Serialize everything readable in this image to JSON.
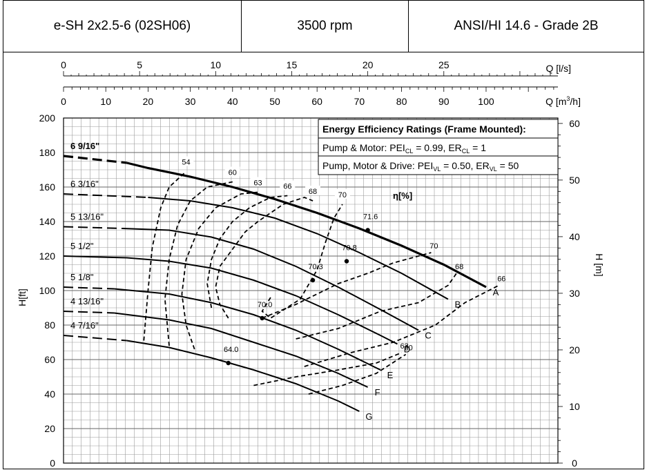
{
  "header": {
    "model": "e-SH 2x2.5-6 (02SH06)",
    "speed": "3500 rpm",
    "standard": "ANSI/HI 14.6 - Grade 2B"
  },
  "efficiency_box": {
    "title": "Energy Efficiency Ratings (Frame Mounted):",
    "pump_motor_prefix": "Pump & Motor: PEI",
    "pump_motor_pei_sub": "CL",
    "pump_motor_mid": " = 0.99, ER",
    "pump_motor_er_sub": "CL",
    "pump_motor_end": " = 1",
    "pump_drive_prefix": "Pump, Motor & Drive: PEI",
    "pump_drive_pei_sub": "VL",
    "pump_drive_mid": " = 0.50, ER",
    "pump_drive_er_sub": "VL",
    "pump_drive_end": " = 50"
  },
  "chart_data": {
    "type": "line",
    "axes": {
      "q_ls": {
        "label": "Q [l/s]",
        "range": [
          0,
          32.5
        ],
        "ticks": [
          "0",
          "5",
          "10",
          "15",
          "20",
          "25"
        ],
        "tick_values": [
          0,
          5,
          10,
          15,
          20,
          25
        ]
      },
      "q_m3h": {
        "label_prefix": "Q [m",
        "label_sup": "3",
        "label_suffix": "/h]",
        "range": [
          0,
          117
        ],
        "ticks": [
          "0",
          "10",
          "20",
          "30",
          "40",
          "50",
          "60",
          "70",
          "80",
          "90",
          "100"
        ],
        "tick_values": [
          0,
          10,
          20,
          30,
          40,
          50,
          60,
          70,
          80,
          90,
          100
        ]
      },
      "h_ft": {
        "label": "H[ft]",
        "range": [
          0,
          200
        ],
        "ticks": [
          "0",
          "20",
          "40",
          "60",
          "80",
          "100",
          "120",
          "140",
          "160",
          "180",
          "200"
        ],
        "tick_values": [
          0,
          20,
          40,
          60,
          80,
          100,
          120,
          140,
          160,
          180,
          200
        ]
      },
      "h_m": {
        "label": "H [m]",
        "ticks": [
          "0",
          "10",
          "20",
          "30",
          "40",
          "50",
          "60"
        ],
        "tick_values": [
          0,
          10,
          20,
          30,
          40,
          50,
          60
        ]
      }
    },
    "grid": true,
    "eta_label": "η[%]",
    "impeller_curves": [
      {
        "name": "6 9/16\"",
        "end_label": "A",
        "dashed": [
          [
            0,
            178
          ],
          [
            15,
            174
          ]
        ],
        "solid": [
          [
            15,
            174
          ],
          [
            20,
            171
          ],
          [
            30,
            166
          ],
          [
            40,
            160
          ],
          [
            50,
            153
          ],
          [
            60,
            145
          ],
          [
            70,
            136
          ],
          [
            80,
            126
          ],
          [
            90,
            115
          ],
          [
            100,
            102
          ]
        ]
      },
      {
        "name": "6 3/16\"",
        "end_label": "B",
        "dashed": [
          [
            0,
            156
          ],
          [
            20,
            154
          ]
        ],
        "solid": [
          [
            20,
            154
          ],
          [
            30,
            152
          ],
          [
            40,
            148
          ],
          [
            50,
            142
          ],
          [
            60,
            133
          ],
          [
            70,
            122
          ],
          [
            80,
            110
          ],
          [
            91,
            95
          ]
        ]
      },
      {
        "name": "5 13/16\"",
        "end_label": "C",
        "dashed": [
          [
            0,
            137
          ],
          [
            14,
            136
          ]
        ],
        "solid": [
          [
            14,
            136
          ],
          [
            25,
            135
          ],
          [
            35,
            131
          ],
          [
            45,
            124
          ],
          [
            55,
            114
          ],
          [
            65,
            102
          ],
          [
            75,
            89
          ],
          [
            84,
            77
          ]
        ]
      },
      {
        "name": "5 1/2\"",
        "end_label": "D",
        "dashed": [],
        "solid": [
          [
            0,
            120
          ],
          [
            15,
            119
          ],
          [
            25,
            117
          ],
          [
            35,
            113
          ],
          [
            45,
            106
          ],
          [
            55,
            97
          ],
          [
            65,
            86
          ],
          [
            75,
            74
          ],
          [
            79,
            69
          ]
        ]
      },
      {
        "name": "5 1/8\"",
        "end_label": "E",
        "dashed": [
          [
            0,
            102
          ],
          [
            12,
            101
          ]
        ],
        "solid": [
          [
            12,
            101
          ],
          [
            25,
            98
          ],
          [
            35,
            93
          ],
          [
            45,
            86
          ],
          [
            55,
            77
          ],
          [
            65,
            66
          ],
          [
            75,
            54
          ]
        ]
      },
      {
        "name": "4 13/16\"",
        "end_label": "F",
        "dashed": [
          [
            0,
            88
          ],
          [
            12,
            87
          ]
        ],
        "solid": [
          [
            12,
            87
          ],
          [
            25,
            83
          ],
          [
            35,
            78
          ],
          [
            45,
            70
          ],
          [
            55,
            62
          ],
          [
            65,
            52
          ],
          [
            72,
            44
          ]
        ]
      },
      {
        "name": "4 7/16\"",
        "end_label": "G",
        "dashed": [
          [
            0,
            74
          ],
          [
            15,
            71
          ]
        ],
        "solid": [
          [
            15,
            71
          ],
          [
            25,
            67
          ],
          [
            35,
            61
          ],
          [
            45,
            54
          ],
          [
            55,
            46
          ],
          [
            65,
            36
          ],
          [
            70,
            30
          ]
        ]
      }
    ],
    "iso_efficiency": [
      {
        "label": "54",
        "points": [
          [
            19,
            71
          ],
          [
            20,
            100
          ],
          [
            21,
            125
          ],
          [
            23,
            148
          ],
          [
            25,
            160
          ],
          [
            29,
            169
          ]
        ]
      },
      {
        "label": "60",
        "points": [
          [
            25,
            68
          ],
          [
            24,
            95
          ],
          [
            25,
            118
          ],
          [
            27,
            138
          ],
          [
            30,
            152
          ],
          [
            34,
            160
          ],
          [
            40,
            163
          ]
        ]
      },
      {
        "label": "63",
        "points": [
          [
            31,
            66
          ],
          [
            29,
            80
          ],
          [
            28,
            98
          ],
          [
            29,
            118
          ],
          [
            32,
            136
          ],
          [
            36,
            148
          ],
          [
            42,
            156
          ],
          [
            46,
            157
          ]
        ]
      },
      {
        "label": "66",
        "points": [
          [
            35,
            90
          ],
          [
            34,
            104
          ],
          [
            35,
            118
          ],
          [
            37,
            130
          ],
          [
            40,
            140
          ],
          [
            44,
            148
          ],
          [
            49,
            154
          ],
          [
            53,
            155
          ]
        ]
      },
      {
        "label": "68",
        "points": [
          [
            39,
            84
          ],
          [
            37,
            92
          ],
          [
            36,
            102
          ],
          [
            37,
            114
          ],
          [
            40,
            124
          ],
          [
            43,
            134
          ],
          [
            46,
            140
          ],
          [
            52,
            150
          ],
          [
            57,
            154
          ],
          [
            59,
            152
          ]
        ]
      },
      {
        "label": "70",
        "points": [
          [
            49,
            96
          ],
          [
            47,
            88
          ],
          [
            49,
            84
          ],
          [
            56,
            95
          ],
          [
            60,
            112
          ],
          [
            62,
            128
          ],
          [
            64,
            142
          ],
          [
            66,
            150
          ]
        ]
      }
    ],
    "efficiency_right": [
      {
        "label": "70",
        "points": [
          [
            47,
            84
          ],
          [
            55,
            92
          ],
          [
            65,
            104
          ],
          [
            72,
            110
          ],
          [
            78,
            116
          ],
          [
            87,
            122
          ]
        ]
      },
      {
        "label": "68",
        "points": [
          [
            55,
            72
          ],
          [
            65,
            78
          ],
          [
            75,
            88
          ],
          [
            84,
            93
          ],
          [
            91,
            103
          ],
          [
            93,
            110
          ]
        ]
      },
      {
        "label": "66",
        "points": [
          [
            57,
            56
          ],
          [
            68,
            64
          ],
          [
            78,
            70
          ],
          [
            88,
            80
          ],
          [
            95,
            93
          ],
          [
            103,
            103
          ]
        ]
      },
      {
        "label": "63",
        "points": [
          [
            45,
            45
          ],
          [
            55,
            50
          ],
          [
            65,
            54
          ],
          [
            74,
            58
          ],
          [
            80,
            64
          ]
        ]
      },
      {
        "label": "60",
        "points": [
          [
            58,
            40
          ],
          [
            66,
            45
          ],
          [
            74,
            52
          ],
          [
            81,
            63
          ]
        ]
      }
    ],
    "bep_points": [
      {
        "label": "71.6",
        "x": 72,
        "y": 135
      },
      {
        "label": "70.8",
        "x": 67,
        "y": 117
      },
      {
        "label": "70.3",
        "x": 59,
        "y": 106
      },
      {
        "label": "70.0",
        "x": 47,
        "y": 84
      },
      {
        "label": "64.0",
        "x": 39,
        "y": 58
      }
    ]
  }
}
